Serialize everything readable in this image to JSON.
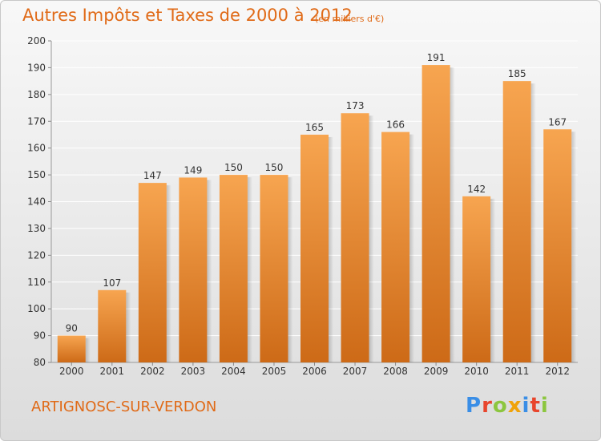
{
  "header": {
    "title": "Autres Impôts et Taxes de 2000 à 2012",
    "unit": "(en milliers d'€)"
  },
  "footer": {
    "place": "ARTIGNOSC-SUR-VERDON",
    "logo_letters": [
      "P",
      "r",
      "o",
      "x",
      "i",
      "t",
      "i"
    ]
  },
  "colors": {
    "accent": "#e06a17",
    "bar_top": "#f7a550",
    "bar_bottom": "#cd6a17",
    "logo": [
      "#3a8ee6",
      "#e8452c",
      "#8cc63f",
      "#f0a30a",
      "#3a8ee6",
      "#e8452c",
      "#8cc63f"
    ]
  },
  "chart_data": {
    "type": "bar",
    "title": "Autres Impôts et Taxes de 2000 à 2012",
    "subtitle": "(en milliers d'€)",
    "categories": [
      "2000",
      "2001",
      "2002",
      "2003",
      "2004",
      "2005",
      "2006",
      "2007",
      "2008",
      "2009",
      "2010",
      "2011",
      "2012"
    ],
    "values": [
      90,
      107,
      147,
      149,
      150,
      150,
      165,
      173,
      166,
      191,
      142,
      185,
      167
    ],
    "ylim": [
      80,
      200
    ],
    "yticks": [
      80,
      90,
      100,
      110,
      120,
      130,
      140,
      150,
      160,
      170,
      180,
      190,
      200
    ],
    "grid": true,
    "xlabel": "",
    "ylabel": ""
  }
}
